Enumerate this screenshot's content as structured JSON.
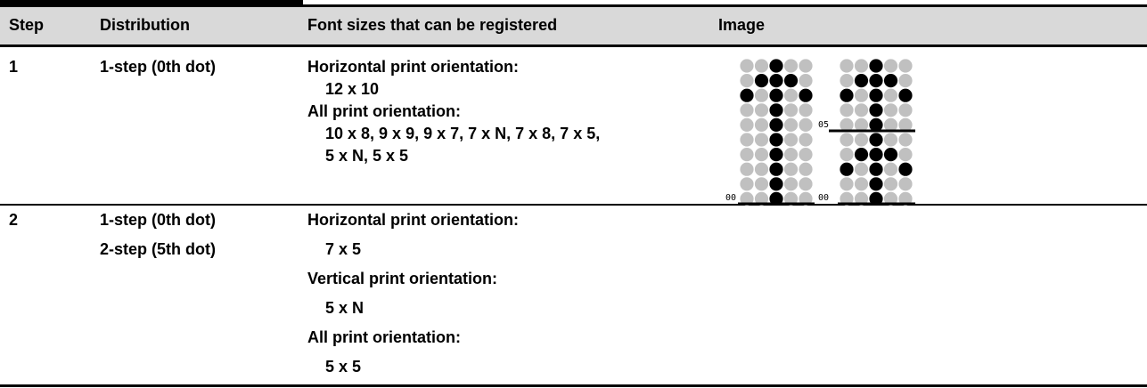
{
  "table": {
    "header": [
      "Step",
      "Distribution",
      "Font sizes that can be registered",
      "Image"
    ],
    "rows": [
      {
        "step": "1",
        "distribution": [
          "1-step (0th dot)"
        ],
        "font_sizes": [
          {
            "heading": "Horizontal print orientation:",
            "sizes": [
              "12 x 10"
            ]
          },
          {
            "heading": "All print orientation:",
            "sizes": [
              "10 x 8, 9 x 9, 9 x 7, 7 x N, 7 x 8, 7 x 5,",
              "5 x N, 5 x 5"
            ]
          }
        ],
        "image_labels": [
          "00",
          "05",
          "00"
        ]
      },
      {
        "step": "2",
        "distribution": [
          "1-step (0th dot)",
          "2-step (5th dot)"
        ],
        "font_sizes": [
          {
            "heading": "Horizontal print orientation:",
            "sizes": [
              "7 x 5"
            ]
          },
          {
            "heading": "Vertical print orientation:",
            "sizes": [
              "5 x N"
            ]
          },
          {
            "heading": "All print orientation:",
            "sizes": [
              "5 x 5"
            ]
          }
        ]
      }
    ]
  }
}
